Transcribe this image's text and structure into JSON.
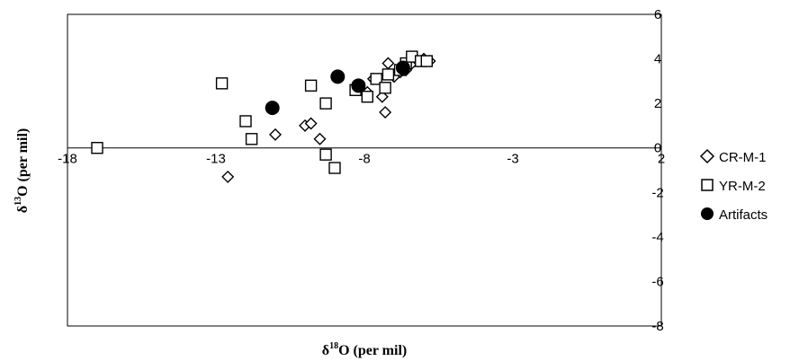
{
  "chart_data": {
    "type": "scatter",
    "title": "",
    "xlabel": {
      "base": "δ",
      "sup": "18",
      "rest": "O (per mil)"
    },
    "ylabel": {
      "base": "δ",
      "sup": "13",
      "rest": "O (per mil)"
    },
    "xlim": [
      -18,
      2
    ],
    "ylim": [
      -8,
      6
    ],
    "xticks": [
      -18,
      -13,
      -8,
      -3,
      2
    ],
    "yticks": [
      6,
      4,
      2,
      0,
      -2,
      -4,
      -6,
      -8
    ],
    "grid": false,
    "legend_position": "right",
    "series": [
      {
        "name": "CR-M-1",
        "marker": "diamond",
        "color": "#000000",
        "points": [
          [
            -12.6,
            -1.3
          ],
          [
            -11.0,
            0.6
          ],
          [
            -10.0,
            1.0
          ],
          [
            -9.8,
            1.1
          ],
          [
            -9.5,
            0.4
          ],
          [
            -8.2,
            2.7
          ],
          [
            -7.9,
            2.5
          ],
          [
            -7.7,
            3.1
          ],
          [
            -7.4,
            2.3
          ],
          [
            -7.3,
            1.6
          ],
          [
            -7.2,
            3.8
          ],
          [
            -7.0,
            3.2
          ],
          [
            -6.8,
            3.4
          ],
          [
            -6.6,
            3.5
          ],
          [
            -6.4,
            3.8
          ],
          [
            -6.2,
            3.9
          ],
          [
            -6.0,
            4.0
          ],
          [
            -5.8,
            3.9
          ]
        ]
      },
      {
        "name": "YR-M-2",
        "marker": "square",
        "color": "#000000",
        "points": [
          [
            -17.0,
            0.0
          ],
          [
            -12.8,
            2.9
          ],
          [
            -12.0,
            1.2
          ],
          [
            -11.8,
            0.4
          ],
          [
            -9.8,
            2.8
          ],
          [
            -9.3,
            2.0
          ],
          [
            -9.3,
            -0.3
          ],
          [
            -9.0,
            -0.9
          ],
          [
            -8.3,
            2.6
          ],
          [
            -7.9,
            2.3
          ],
          [
            -7.6,
            3.1
          ],
          [
            -7.3,
            2.7
          ],
          [
            -7.2,
            3.3
          ],
          [
            -6.8,
            3.5
          ],
          [
            -6.6,
            3.8
          ],
          [
            -6.4,
            4.1
          ],
          [
            -6.1,
            3.9
          ],
          [
            -5.9,
            3.9
          ]
        ]
      },
      {
        "name": "Artifacts",
        "marker": "circle-filled",
        "color": "#000000",
        "points": [
          [
            -11.1,
            1.8
          ],
          [
            -8.9,
            3.2
          ],
          [
            -8.2,
            2.8
          ],
          [
            -6.7,
            3.6
          ]
        ]
      }
    ]
  }
}
